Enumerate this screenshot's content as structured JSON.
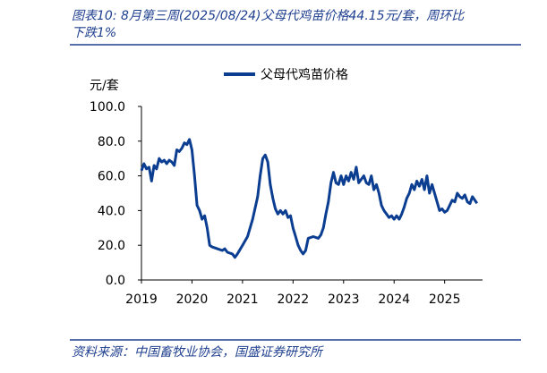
{
  "title": "图表10:  8月第三周(2025/08/24)父母代鸡苗价格44.15元/套，周环比下跌1%",
  "source": "资料来源：中国畜牧业协会，国盛证券研究所",
  "chart_data": {
    "type": "line",
    "y_unit": "元/套",
    "x": [
      2019.0,
      2019.05,
      2019.1,
      2019.15,
      2019.2,
      2019.25,
      2019.3,
      2019.35,
      2019.4,
      2019.45,
      2019.5,
      2019.55,
      2019.6,
      2019.65,
      2019.7,
      2019.75,
      2019.8,
      2019.85,
      2019.9,
      2019.95,
      2020.0,
      2020.05,
      2020.1,
      2020.15,
      2020.2,
      2020.25,
      2020.3,
      2020.35,
      2020.4,
      2020.5,
      2020.6,
      2020.65,
      2020.7,
      2020.8,
      2020.85,
      2020.9,
      2021.0,
      2021.1,
      2021.2,
      2021.3,
      2021.35,
      2021.4,
      2021.45,
      2021.5,
      2021.55,
      2021.6,
      2021.65,
      2021.7,
      2021.75,
      2021.8,
      2021.85,
      2021.9,
      2021.95,
      2022.0,
      2022.05,
      2022.1,
      2022.15,
      2022.2,
      2022.25,
      2022.3,
      2022.4,
      2022.5,
      2022.55,
      2022.6,
      2022.65,
      2022.7,
      2022.75,
      2022.8,
      2022.85,
      2022.9,
      2022.95,
      2023.0,
      2023.05,
      2023.1,
      2023.15,
      2023.2,
      2023.25,
      2023.3,
      2023.35,
      2023.4,
      2023.45,
      2023.5,
      2023.55,
      2023.6,
      2023.65,
      2023.7,
      2023.75,
      2023.8,
      2023.85,
      2023.9,
      2023.95,
      2024.0,
      2024.05,
      2024.1,
      2024.15,
      2024.2,
      2024.25,
      2024.3,
      2024.35,
      2024.4,
      2024.45,
      2024.5,
      2024.55,
      2024.6,
      2024.65,
      2024.7,
      2024.75,
      2024.8,
      2024.85,
      2024.9,
      2024.95,
      2025.0,
      2025.05,
      2025.1,
      2025.15,
      2025.2,
      2025.25,
      2025.3,
      2025.35,
      2025.4,
      2025.45,
      2025.5,
      2025.55,
      2025.64
    ],
    "series": [
      {
        "name": "父母代鸡苗价格",
        "color": "#0b3d91",
        "values": [
          63,
          67,
          64,
          65,
          57,
          66,
          64,
          70,
          68,
          69,
          67,
          69,
          68,
          66,
          75,
          74,
          76,
          79,
          78,
          81,
          75,
          60,
          43,
          40,
          35,
          37,
          30,
          20,
          19,
          18,
          17,
          18,
          16,
          15,
          13,
          15,
          20,
          25,
          35,
          48,
          60,
          70,
          72,
          68,
          55,
          47,
          41,
          38,
          40,
          38,
          40,
          36,
          37,
          30,
          25,
          20,
          17,
          15,
          17,
          24,
          25,
          24,
          26,
          30,
          38,
          45,
          56,
          62,
          56,
          55,
          60,
          55,
          60,
          57,
          62,
          58,
          65,
          56,
          58,
          60,
          56,
          55,
          60,
          52,
          55,
          50,
          43,
          40,
          38,
          36,
          37,
          35,
          37,
          35,
          38,
          42,
          47,
          50,
          55,
          52,
          57,
          54,
          58,
          52,
          60,
          50,
          55,
          50,
          45,
          40,
          41,
          39,
          40,
          43,
          46,
          45,
          50,
          48,
          47,
          49,
          45,
          44,
          48,
          44.15
        ]
      }
    ],
    "xlim": [
      2019,
      2025.75
    ],
    "xticks": [
      2019,
      2020,
      2021,
      2022,
      2023,
      2024,
      2025
    ],
    "ylim": [
      0,
      100
    ],
    "yticks": [
      {
        "value": 0,
        "label": "0.0"
      },
      {
        "value": 20,
        "label": "20.0"
      },
      {
        "value": 40,
        "label": "40.0"
      },
      {
        "value": 60,
        "label": "60.0"
      },
      {
        "value": 80,
        "label": "80.0"
      },
      {
        "value": 100,
        "label": "100.0"
      }
    ],
    "legend": "top"
  }
}
